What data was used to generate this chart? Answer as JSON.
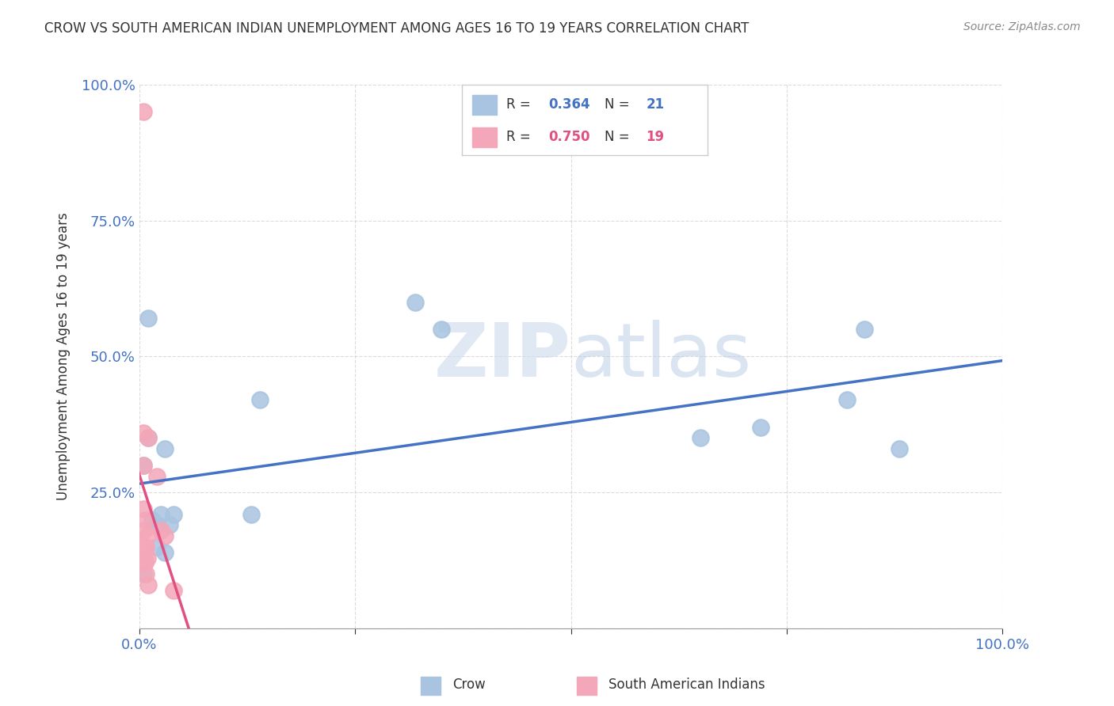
{
  "title": "CROW VS SOUTH AMERICAN INDIAN UNEMPLOYMENT AMONG AGES 16 TO 19 YEARS CORRELATION CHART",
  "source": "Source: ZipAtlas.com",
  "ylabel": "Unemployment Among Ages 16 to 19 years",
  "xlim": [
    0,
    1.0
  ],
  "ylim": [
    0,
    1.0
  ],
  "crow_x": [
    0.005,
    0.01,
    0.01,
    0.02,
    0.025,
    0.03,
    0.03,
    0.035,
    0.04,
    0.13,
    0.14,
    0.32,
    0.35,
    0.65,
    0.72,
    0.82,
    0.84,
    0.005,
    0.015,
    0.02,
    0.88
  ],
  "crow_y": [
    0.3,
    0.57,
    0.35,
    0.19,
    0.21,
    0.33,
    0.14,
    0.19,
    0.21,
    0.21,
    0.42,
    0.6,
    0.55,
    0.35,
    0.37,
    0.42,
    0.55,
    0.1,
    0.2,
    0.15,
    0.33
  ],
  "sa_x": [
    0.005,
    0.005,
    0.005,
    0.005,
    0.006,
    0.006,
    0.007,
    0.007,
    0.008,
    0.008,
    0.009,
    0.009,
    0.01,
    0.01,
    0.02,
    0.025,
    0.03,
    0.04,
    0.005
  ],
  "sa_y": [
    0.95,
    0.36,
    0.3,
    0.18,
    0.15,
    0.13,
    0.12,
    0.2,
    0.15,
    0.1,
    0.13,
    0.17,
    0.35,
    0.08,
    0.28,
    0.18,
    0.17,
    0.07,
    0.22
  ],
  "crow_R": 0.364,
  "crow_N": 21,
  "sa_R": 0.75,
  "sa_N": 19,
  "crow_color": "#a8c4e0",
  "crow_line_color": "#4472c4",
  "sa_color": "#f4a7b9",
  "sa_line_color": "#e05080",
  "bg_color": "#ffffff",
  "grid_color": "#cccccc",
  "legend_color_blue": "#4472c4",
  "legend_color_pink": "#e05080"
}
